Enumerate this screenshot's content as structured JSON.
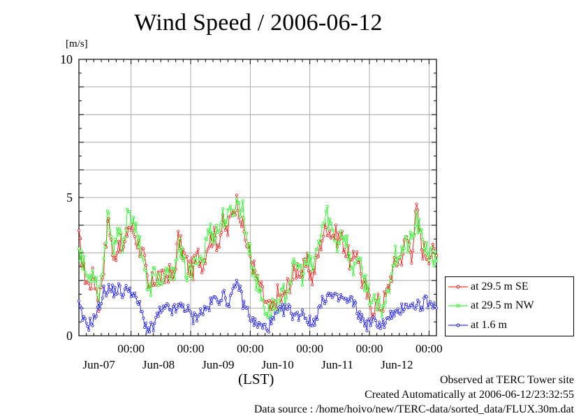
{
  "chart_data": {
    "type": "line",
    "title": "Wind Speed / 2006-06-12",
    "ylabel": "[m/s]",
    "xlabel": "(LST)",
    "ylim": [
      0,
      10
    ],
    "xlim_hours": [
      0,
      144
    ],
    "y_ticks": [
      {
        "value": 0,
        "label": "0"
      },
      {
        "value": 5,
        "label": "5"
      },
      {
        "value": 10,
        "label": "10"
      }
    ],
    "x_ticks": [
      {
        "hour": 21,
        "time": "00:00",
        "date": "Jun-07"
      },
      {
        "hour": 45,
        "time": "00:00",
        "date": "Jun-08"
      },
      {
        "hour": 69,
        "time": "00:00",
        "date": "Jun-09"
      },
      {
        "hour": 93,
        "time": "00:00",
        "date": "Jun-10"
      },
      {
        "hour": 117,
        "time": "00:00",
        "date": "Jun-11"
      },
      {
        "hour": 141,
        "time": "00:00",
        "date": "Jun-12"
      }
    ],
    "grid": true,
    "legend_position": "right",
    "series": [
      {
        "name": "at 29.5 m SE",
        "color": "#ff0000",
        "anchors": [
          [
            0,
            3.5
          ],
          [
            2,
            2.3
          ],
          [
            4,
            1.8
          ],
          [
            6,
            2.2
          ],
          [
            8,
            1.2
          ],
          [
            10,
            2.6
          ],
          [
            12,
            4.3
          ],
          [
            14,
            2.6
          ],
          [
            16,
            3.5
          ],
          [
            18,
            3.1
          ],
          [
            20,
            4.0
          ],
          [
            22,
            3.8
          ],
          [
            24,
            3.3
          ],
          [
            26,
            2.9
          ],
          [
            28,
            1.6
          ],
          [
            30,
            2.0
          ],
          [
            32,
            2.2
          ],
          [
            34,
            2.0
          ],
          [
            36,
            2.3
          ],
          [
            38,
            2.0
          ],
          [
            40,
            3.5
          ],
          [
            42,
            3.0
          ],
          [
            44,
            2.5
          ],
          [
            46,
            2.4
          ],
          [
            48,
            2.9
          ],
          [
            50,
            2.6
          ],
          [
            52,
            3.4
          ],
          [
            54,
            3.6
          ],
          [
            56,
            3.4
          ],
          [
            58,
            4.0
          ],
          [
            60,
            3.8
          ],
          [
            62,
            4.6
          ],
          [
            64,
            4.9
          ],
          [
            66,
            3.9
          ],
          [
            68,
            3.2
          ],
          [
            70,
            2.6
          ],
          [
            72,
            1.9
          ],
          [
            74,
            1.5
          ],
          [
            76,
            1.0
          ],
          [
            78,
            0.9
          ],
          [
            80,
            1.5
          ],
          [
            82,
            1.3
          ],
          [
            84,
            1.8
          ],
          [
            86,
            2.1
          ],
          [
            88,
            2.5
          ],
          [
            90,
            2.3
          ],
          [
            92,
            2.6
          ],
          [
            94,
            2.1
          ],
          [
            96,
            2.8
          ],
          [
            98,
            3.6
          ],
          [
            100,
            4.0
          ],
          [
            102,
            3.7
          ],
          [
            104,
            3.6
          ],
          [
            106,
            3.5
          ],
          [
            108,
            3.0
          ],
          [
            110,
            2.5
          ],
          [
            112,
            3.2
          ],
          [
            114,
            2.0
          ],
          [
            116,
            1.5
          ],
          [
            118,
            1.0
          ],
          [
            120,
            1.2
          ],
          [
            122,
            1.1
          ],
          [
            124,
            1.5
          ],
          [
            126,
            2.3
          ],
          [
            128,
            2.7
          ],
          [
            130,
            2.9
          ],
          [
            132,
            3.6
          ],
          [
            134,
            3.0
          ],
          [
            136,
            4.6
          ],
          [
            138,
            3.2
          ],
          [
            140,
            3.0
          ],
          [
            142,
            3.0
          ],
          [
            144,
            2.9
          ]
        ]
      },
      {
        "name": "at 29.5 m NW",
        "color": "#00ff00",
        "anchors": [
          [
            0,
            3.3
          ],
          [
            2,
            2.5
          ],
          [
            4,
            2.0
          ],
          [
            6,
            2.5
          ],
          [
            8,
            1.4
          ],
          [
            10,
            2.8
          ],
          [
            12,
            4.6
          ],
          [
            14,
            2.9
          ],
          [
            16,
            3.7
          ],
          [
            18,
            3.3
          ],
          [
            20,
            4.8
          ],
          [
            22,
            3.9
          ],
          [
            24,
            3.6
          ],
          [
            26,
            2.8
          ],
          [
            28,
            1.4
          ],
          [
            30,
            2.2
          ],
          [
            32,
            2.1
          ],
          [
            34,
            1.9
          ],
          [
            36,
            2.2
          ],
          [
            38,
            2.1
          ],
          [
            40,
            3.4
          ],
          [
            42,
            2.6
          ],
          [
            44,
            2.2
          ],
          [
            46,
            2.3
          ],
          [
            48,
            3.0
          ],
          [
            50,
            2.7
          ],
          [
            52,
            3.8
          ],
          [
            54,
            3.7
          ],
          [
            56,
            3.8
          ],
          [
            58,
            4.3
          ],
          [
            60,
            4.2
          ],
          [
            62,
            4.6
          ],
          [
            64,
            4.8
          ],
          [
            66,
            4.6
          ],
          [
            68,
            3.4
          ],
          [
            70,
            2.5
          ],
          [
            72,
            1.8
          ],
          [
            74,
            1.3
          ],
          [
            76,
            0.8
          ],
          [
            78,
            1.0
          ],
          [
            80,
            1.2
          ],
          [
            82,
            1.4
          ],
          [
            84,
            1.7
          ],
          [
            86,
            2.3
          ],
          [
            88,
            2.6
          ],
          [
            90,
            2.2
          ],
          [
            92,
            2.7
          ],
          [
            94,
            2.4
          ],
          [
            96,
            3.1
          ],
          [
            98,
            3.9
          ],
          [
            100,
            4.4
          ],
          [
            102,
            3.8
          ],
          [
            104,
            3.3
          ],
          [
            106,
            3.8
          ],
          [
            108,
            3.4
          ],
          [
            110,
            2.2
          ],
          [
            112,
            3.0
          ],
          [
            114,
            2.2
          ],
          [
            116,
            1.8
          ],
          [
            118,
            1.2
          ],
          [
            120,
            1.0
          ],
          [
            122,
            1.0
          ],
          [
            124,
            1.4
          ],
          [
            126,
            2.5
          ],
          [
            128,
            3.0
          ],
          [
            130,
            3.1
          ],
          [
            132,
            3.3
          ],
          [
            134,
            3.4
          ],
          [
            136,
            4.2
          ],
          [
            138,
            3.5
          ],
          [
            140,
            3.2
          ],
          [
            142,
            2.8
          ],
          [
            144,
            2.7
          ]
        ]
      },
      {
        "name": "at 1.6 m",
        "color": "#0000ff",
        "anchors": [
          [
            0,
            1.1
          ],
          [
            2,
            0.5
          ],
          [
            4,
            0.4
          ],
          [
            6,
            0.6
          ],
          [
            8,
            1.0
          ],
          [
            10,
            1.6
          ],
          [
            12,
            1.7
          ],
          [
            14,
            1.6
          ],
          [
            16,
            1.7
          ],
          [
            18,
            1.5
          ],
          [
            20,
            1.8
          ],
          [
            22,
            1.4
          ],
          [
            24,
            1.2
          ],
          [
            26,
            0.6
          ],
          [
            28,
            0.2
          ],
          [
            30,
            0.3
          ],
          [
            32,
            0.8
          ],
          [
            34,
            0.9
          ],
          [
            36,
            1.0
          ],
          [
            38,
            0.9
          ],
          [
            40,
            1.0
          ],
          [
            42,
            1.1
          ],
          [
            44,
            0.9
          ],
          [
            46,
            0.6
          ],
          [
            48,
            0.8
          ],
          [
            50,
            0.9
          ],
          [
            52,
            1.0
          ],
          [
            54,
            1.3
          ],
          [
            56,
            1.3
          ],
          [
            58,
            1.5
          ],
          [
            60,
            1.2
          ],
          [
            62,
            1.5
          ],
          [
            64,
            2.0
          ],
          [
            66,
            1.2
          ],
          [
            68,
            0.9
          ],
          [
            70,
            0.5
          ],
          [
            72,
            0.4
          ],
          [
            74,
            0.3
          ],
          [
            76,
            0.3
          ],
          [
            78,
            0.5
          ],
          [
            80,
            0.8
          ],
          [
            82,
            0.9
          ],
          [
            84,
            1.0
          ],
          [
            86,
            0.8
          ],
          [
            88,
            0.7
          ],
          [
            90,
            0.9
          ],
          [
            92,
            0.6
          ],
          [
            94,
            0.4
          ],
          [
            96,
            0.8
          ],
          [
            98,
            1.2
          ],
          [
            100,
            1.5
          ],
          [
            102,
            1.4
          ],
          [
            104,
            1.3
          ],
          [
            106,
            1.4
          ],
          [
            108,
            1.2
          ],
          [
            110,
            1.3
          ],
          [
            112,
            0.9
          ],
          [
            114,
            0.6
          ],
          [
            116,
            0.4
          ],
          [
            118,
            0.5
          ],
          [
            120,
            0.5
          ],
          [
            122,
            0.4
          ],
          [
            124,
            0.5
          ],
          [
            126,
            0.8
          ],
          [
            128,
            0.7
          ],
          [
            130,
            1.0
          ],
          [
            132,
            1.2
          ],
          [
            134,
            1.0
          ],
          [
            136,
            1.2
          ],
          [
            138,
            1.0
          ],
          [
            140,
            1.3
          ],
          [
            142,
            1.0
          ],
          [
            144,
            1.0
          ]
        ]
      }
    ]
  },
  "footer": {
    "observed": "Observed at TERC Tower site",
    "created": "Created Automatically at 2006-06-12/23:32:55",
    "source": "Data source : /home/hoivo/new/TERC-data/sorted_data/FLUX.30m.dat"
  }
}
